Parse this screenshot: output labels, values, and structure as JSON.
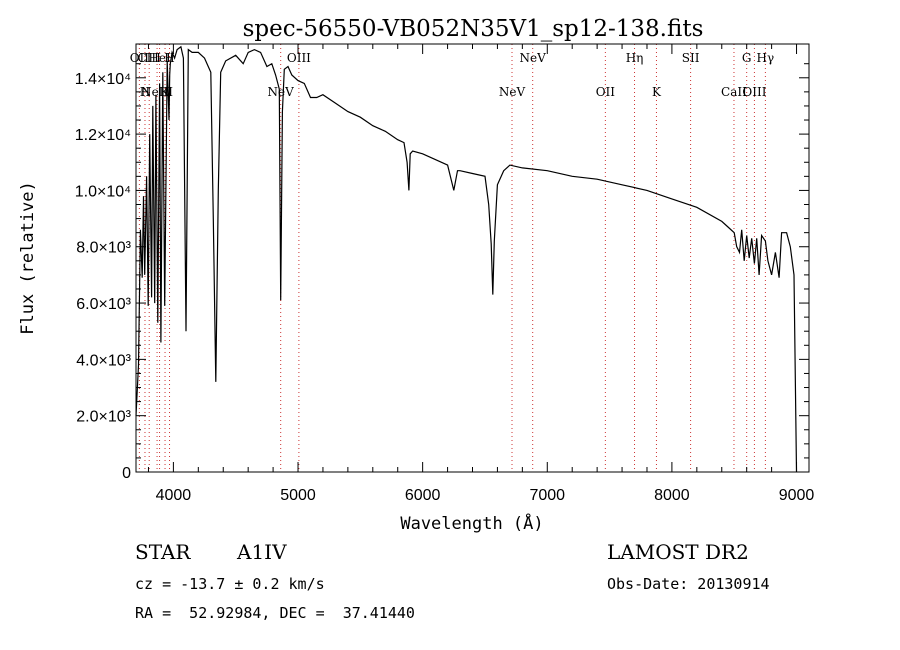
{
  "chart_data": {
    "type": "line",
    "title": "spec-56550-VB052N35V1_sp12-138.fits",
    "xlabel": "Wavelength (Å)",
    "ylabel": "Flux (relative)",
    "xlim": [
      3700,
      9100
    ],
    "ylim": [
      0,
      15200
    ],
    "xticks": [
      4000,
      5000,
      6000,
      7000,
      8000,
      9000
    ],
    "xticks_labels": [
      "4000",
      "5000",
      "6000",
      "7000",
      "8000",
      "9000"
    ],
    "yticks": [
      0,
      2000,
      4000,
      6000,
      8000,
      10000,
      12000,
      14000
    ],
    "yticks_labels": [
      "0",
      "2.0×10³",
      "4.0×10³",
      "6.0×10³",
      "8.0×10³",
      "1.0×10⁴",
      "1.2×10⁴",
      "1.4×10⁴"
    ],
    "grid": false,
    "line_color": "#000000",
    "marker_color": "#cc3333",
    "series": [
      {
        "x": [
          3700,
          3720,
          3735,
          3750,
          3760,
          3770,
          3785,
          3798,
          3810,
          3825,
          3835,
          3850,
          3860,
          3875,
          3889,
          3900,
          3915,
          3930,
          3950,
          3965,
          3970,
          3975,
          3990,
          4010,
          4030,
          4060,
          4080,
          4101,
          4120,
          4150,
          4200,
          4250,
          4300,
          4320,
          4340,
          4360,
          4380,
          4420,
          4500,
          4560,
          4600,
          4650,
          4700,
          4750,
          4790,
          4820,
          4850,
          4861,
          4875,
          4890,
          4920,
          4950,
          5000,
          5050,
          5100,
          5150,
          5200,
          5300,
          5400,
          5500,
          5600,
          5700,
          5800,
          5850,
          5875,
          5890,
          5900,
          5920,
          6000,
          6100,
          6200,
          6250,
          6280,
          6300,
          6400,
          6500,
          6530,
          6550,
          6563,
          6575,
          6600,
          6650,
          6700,
          6800,
          7000,
          7200,
          7400,
          7600,
          7800,
          8000,
          8200,
          8400,
          8450,
          8500,
          8520,
          8542,
          8560,
          8580,
          8600,
          8620,
          8640,
          8662,
          8680,
          8700,
          8720,
          8750,
          8770,
          8800,
          8830,
          8860,
          8880,
          8920,
          8950,
          8980,
          9000
        ],
        "y": [
          2000,
          3800,
          8600,
          6900,
          9800,
          7000,
          10500,
          5900,
          12000,
          6200,
          13000,
          6000,
          13400,
          5300,
          13800,
          4600,
          14200,
          5900,
          14600,
          12500,
          14100,
          14500,
          14900,
          14700,
          15000,
          15100,
          14700,
          5000,
          15000,
          14900,
          14900,
          14700,
          14200,
          9000,
          3200,
          10000,
          14200,
          14600,
          14800,
          14500,
          14900,
          15000,
          14900,
          14400,
          14500,
          14100,
          13600,
          6100,
          12800,
          14300,
          14400,
          14100,
          13900,
          13800,
          13300,
          13300,
          13400,
          13100,
          12800,
          12600,
          12300,
          12100,
          11800,
          11700,
          11000,
          10000,
          11300,
          11400,
          11300,
          11100,
          10900,
          10000,
          10700,
          10700,
          10600,
          10500,
          9500,
          8100,
          6300,
          8200,
          10200,
          10700,
          10900,
          10800,
          10700,
          10500,
          10400,
          10200,
          10000,
          9700,
          9400,
          8900,
          8700,
          8500,
          8000,
          7800,
          8600,
          7500,
          8400,
          7600,
          8300,
          7400,
          8300,
          7000,
          8400,
          8200,
          7500,
          7000,
          7800,
          6900,
          8500,
          8500,
          8000,
          7000,
          0
        ]
      }
    ],
    "line_markers": [
      {
        "x": 3727,
        "label": "OII"
      },
      {
        "x": 3772,
        "label": "H"
      },
      {
        "x": 3806,
        "label": "CIII"
      },
      {
        "x": 3869,
        "label": "NeIII"
      },
      {
        "x": 3889,
        "label": "HeI"
      },
      {
        "x": 3933,
        "label": "K"
      },
      {
        "x": 3969,
        "label": "H"
      },
      {
        "x": 4861,
        "label": "NeV"
      },
      {
        "x": 5007,
        "label": "OIII"
      },
      {
        "x": 6717,
        "label": "NeV"
      },
      {
        "x": 6883,
        "label": "NeV"
      },
      {
        "x": 7466,
        "label": "OII"
      },
      {
        "x": 7700,
        "label": "Hη"
      },
      {
        "x": 7876,
        "label": "K"
      },
      {
        "x": 8150,
        "label": "SII"
      },
      {
        "x": 8498,
        "label": "CaII"
      },
      {
        "x": 8600,
        "label": "G"
      },
      {
        "x": 8662,
        "label": "OIII"
      },
      {
        "x": 8750,
        "label": "Hγ"
      }
    ]
  },
  "info": {
    "object_type": "STAR",
    "subclass": "A1IV",
    "survey": "LAMOST DR2",
    "redshift": "cz = -13.7 ± 0.2 km/s",
    "obs_date": "Obs-Date: 20130914",
    "coordinates": "RA =  52.92984, DEC =  37.41440"
  }
}
